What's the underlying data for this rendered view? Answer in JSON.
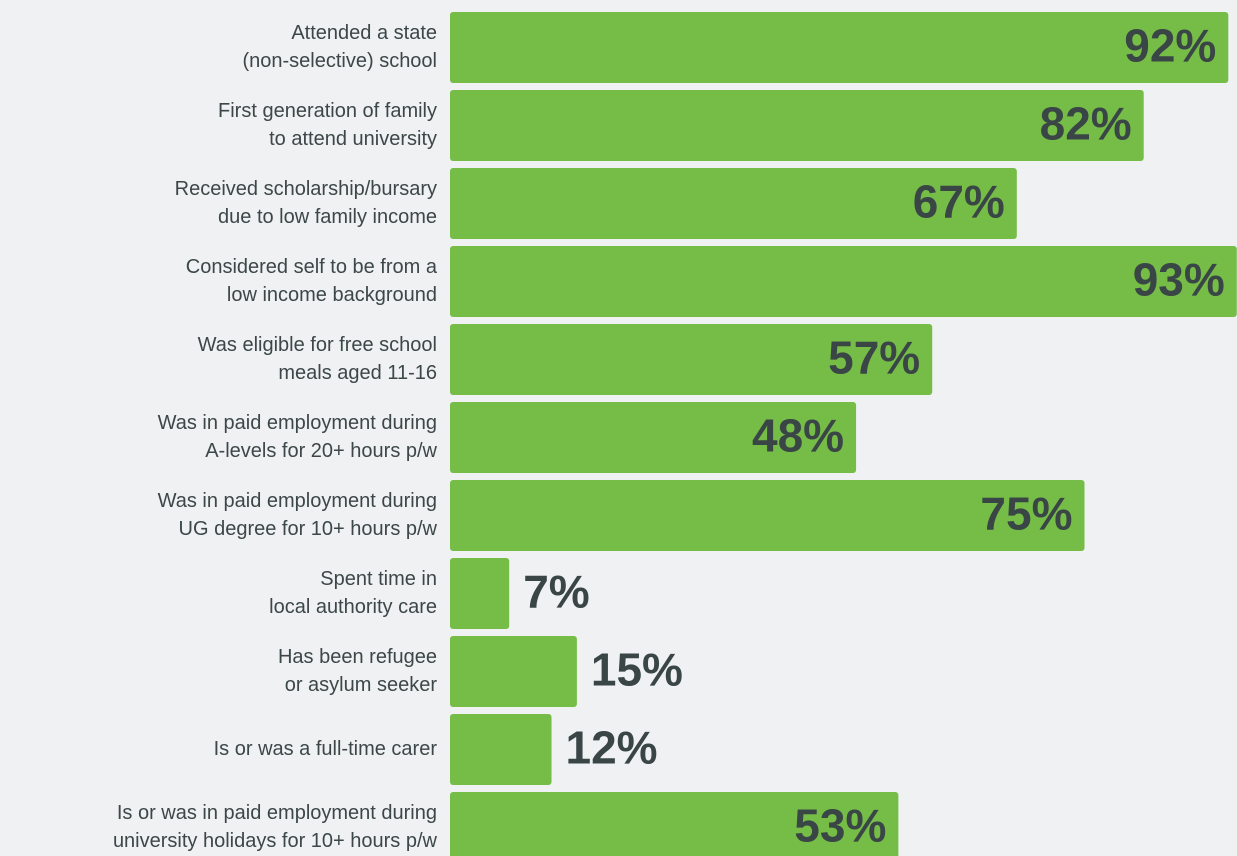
{
  "chart_data": {
    "type": "bar",
    "orientation": "horizontal",
    "color": "#76bd48",
    "categories": [
      [
        "Attended a state",
        "(non-selective) school"
      ],
      [
        "First generation of family",
        "to attend university"
      ],
      [
        "Received scholarship/bursary",
        "due to low family income"
      ],
      [
        "Considered self to be from a",
        "low income background"
      ],
      [
        "Was eligible for free school",
        "meals aged 11-16"
      ],
      [
        "Was in paid employment during",
        "A-levels for 20+ hours p/w"
      ],
      [
        "Was in paid employment during",
        "UG degree for 10+ hours p/w"
      ],
      [
        "Spent time in",
        "local authority care"
      ],
      [
        "Has been refugee",
        "or asylum seeker"
      ],
      [
        "Is or was a full-time carer"
      ],
      [
        "Is or was in paid employment during",
        "university holidays for 10+ hours p/w"
      ]
    ],
    "values": [
      92,
      82,
      67,
      93,
      57,
      48,
      75,
      7,
      15,
      12,
      53
    ],
    "value_labels": [
      "92%",
      "82%",
      "67%",
      "93%",
      "57%",
      "48%",
      "75%",
      "7%",
      "15%",
      "12%",
      "53%"
    ]
  }
}
